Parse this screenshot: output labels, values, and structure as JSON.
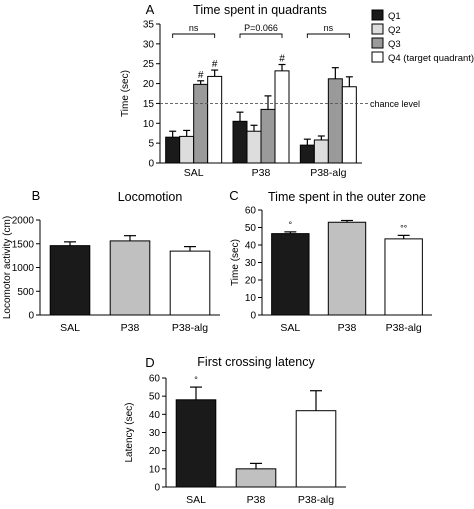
{
  "chart_data": [
    {
      "panel": "A",
      "type": "bar",
      "title": "Time spent in quadrants",
      "ylabel": "Time (sec)",
      "ylim": [
        0,
        35
      ],
      "yticks": [
        0,
        5,
        10,
        15,
        20,
        25,
        30,
        35
      ],
      "categories": [
        "SAL",
        "P38",
        "P38-alg"
      ],
      "series": [
        {
          "name": "Q1",
          "color": "#1a1a1a",
          "values": [
            6.5,
            10.5,
            4.5
          ],
          "errors": [
            1.5,
            2.3,
            1.5
          ]
        },
        {
          "name": "Q2",
          "color": "#dddddd",
          "values": [
            6.7,
            8.0,
            5.8
          ],
          "errors": [
            1.5,
            1.5,
            1.0
          ]
        },
        {
          "name": "Q3",
          "color": "#9a9a9a",
          "values": [
            19.8,
            13.5,
            21.2
          ],
          "errors": [
            0.9,
            3.4,
            2.8
          ]
        },
        {
          "name": "Q4 (target quadrant)",
          "color": "#ffffff",
          "values": [
            21.8,
            23.2,
            19.2
          ],
          "errors": [
            1.6,
            1.6,
            2.5
          ]
        }
      ],
      "reference_line": {
        "value": 15,
        "label": "chance level"
      },
      "annotations": [
        {
          "category": "SAL",
          "text": "ns"
        },
        {
          "category": "P38",
          "text": "P=0.066"
        },
        {
          "category": "P38-alg",
          "text": "ns"
        },
        {
          "category": "SAL",
          "series": "Q3",
          "text": "#"
        },
        {
          "category": "SAL",
          "series": "Q4 (target quadrant)",
          "text": "#"
        },
        {
          "category": "P38",
          "series": "Q4 (target quadrant)",
          "text": "#"
        }
      ],
      "legend_position": "top-right"
    },
    {
      "panel": "B",
      "type": "bar",
      "title": "Locomotion",
      "ylabel": "Locomotor activity (cm)",
      "ylim": [
        0,
        2000
      ],
      "yticks": [
        0,
        500,
        1000,
        1500,
        2000
      ],
      "categories": [
        "SAL",
        "P38",
        "P38-alg"
      ],
      "values": [
        1460,
        1560,
        1345
      ],
      "errors": [
        80,
        110,
        95
      ],
      "colors": [
        "#1a1a1a",
        "#c0c0c0",
        "#ffffff"
      ],
      "marks": [
        "",
        "",
        ""
      ]
    },
    {
      "panel": "C",
      "type": "bar",
      "title": "Time spent in the outer zone",
      "ylabel": "Time (sec)",
      "ylim": [
        0,
        60
      ],
      "yticks": [
        0,
        10,
        20,
        30,
        40,
        50,
        60
      ],
      "categories": [
        "SAL",
        "P38",
        "P38-alg"
      ],
      "values": [
        46.5,
        53,
        43.5
      ],
      "errors": [
        1.0,
        1.0,
        2.0
      ],
      "colors": [
        "#1a1a1a",
        "#c0c0c0",
        "#ffffff"
      ],
      "marks": [
        "°",
        "",
        "°°"
      ]
    },
    {
      "panel": "D",
      "type": "bar",
      "title": "First crossing latency",
      "ylabel": "Latency (sec)",
      "ylim": [
        0,
        60
      ],
      "yticks": [
        0,
        10,
        20,
        30,
        40,
        50,
        60
      ],
      "categories": [
        "SAL",
        "P38",
        "P38-alg"
      ],
      "values": [
        48,
        10,
        42
      ],
      "errors": [
        7,
        3,
        11
      ],
      "colors": [
        "#1a1a1a",
        "#c0c0c0",
        "#ffffff"
      ],
      "marks": [
        "°",
        "",
        ""
      ]
    }
  ]
}
